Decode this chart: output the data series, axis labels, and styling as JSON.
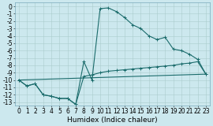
{
  "xlabel": "Humidex (Indice chaleur)",
  "bg_color": "#cce8ee",
  "grid_color": "#aacccc",
  "line_color": "#1a6b6b",
  "xlim": [
    -0.5,
    23.5
  ],
  "ylim": [
    -13.5,
    0.5
  ],
  "xticks": [
    0,
    1,
    2,
    3,
    4,
    5,
    6,
    7,
    8,
    9,
    10,
    11,
    12,
    13,
    14,
    15,
    16,
    17,
    18,
    19,
    20,
    21,
    22,
    23
  ],
  "yticks": [
    0,
    -1,
    -2,
    -3,
    -4,
    -5,
    -6,
    -7,
    -8,
    -9,
    -10,
    -11,
    -12,
    -13
  ],
  "line1_x": [
    0,
    1,
    2,
    3,
    4,
    5,
    6,
    7,
    8,
    9,
    10,
    11,
    12,
    13,
    14,
    15,
    16,
    17,
    18,
    19,
    20,
    21,
    22,
    23
  ],
  "line1_y": [
    -10,
    -10.8,
    -10.5,
    -12.0,
    -12.2,
    -12.5,
    -12.5,
    -13.3,
    -7.5,
    -10.0,
    -0.3,
    -0.2,
    -0.7,
    -1.5,
    -2.5,
    -3.0,
    -4.0,
    -4.5,
    -4.2,
    -5.8,
    -6.0,
    -6.5,
    -7.2,
    -9.2
  ],
  "line2_x": [
    0,
    1,
    2,
    3,
    4,
    5,
    6,
    7,
    8,
    9,
    10,
    11,
    12,
    13,
    14,
    15,
    16,
    17,
    18,
    19,
    20,
    21,
    22,
    23
  ],
  "line2_y": [
    -10,
    -10.8,
    -10.5,
    -12.0,
    -12.2,
    -12.5,
    -12.5,
    -13.3,
    -9.5,
    -9.3,
    -9.0,
    -8.8,
    -8.7,
    -8.6,
    -8.5,
    -8.4,
    -8.3,
    -8.2,
    -8.1,
    -8.0,
    -7.8,
    -7.7,
    -7.5,
    -9.2
  ],
  "line3_x": [
    0,
    23
  ],
  "line3_y": [
    -10.0,
    -9.2
  ],
  "fontsize_label": 6.5,
  "fontsize_tick": 5.5
}
